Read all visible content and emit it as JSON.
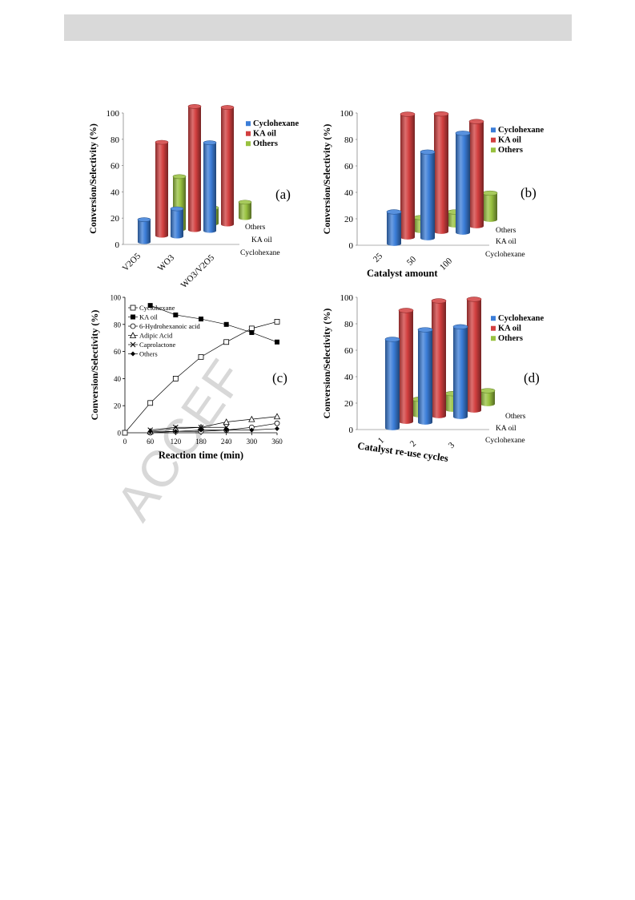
{
  "watermark": "ACCEF",
  "colors": {
    "cyclohexane": "#3b7dd8",
    "ka_oil": "#d23f3f",
    "others": "#98c13f"
  },
  "chart_data": [
    {
      "id": "a",
      "type": "bar",
      "panel_label": "(a)",
      "ylabel": "Conversion/Selectivity (%)",
      "ylim": [
        0,
        100
      ],
      "yticks": [
        "0",
        "20",
        "40",
        "60",
        "80",
        "100"
      ],
      "categories": [
        "V2O5",
        "WO3",
        "WO3/V2O5"
      ],
      "depth_labels": [
        "Others",
        "KA oil",
        "Cyclohexane"
      ],
      "legend": [
        "Cyclohexane",
        "KA oil",
        "Others"
      ],
      "series": [
        {
          "name": "Cyclohexane",
          "values": [
            17,
            21,
            67
          ]
        },
        {
          "name": "KA oil",
          "values": [
            71,
            94,
            89
          ]
        },
        {
          "name": "Others",
          "values": [
            40,
            12,
            12
          ]
        }
      ]
    },
    {
      "id": "b",
      "type": "bar",
      "panel_label": "(b)",
      "ylabel": "Conversion/Selectivity (%)",
      "xlabel": "Catalyst amount",
      "ylim": [
        0,
        100
      ],
      "yticks": [
        "0",
        "20",
        "40",
        "60",
        "80",
        "100"
      ],
      "categories": [
        "25",
        "50",
        "100"
      ],
      "depth_labels": [
        "Others",
        "KA oil",
        "Cyclohexane"
      ],
      "legend": [
        "Cyclohexane",
        "KA oil",
        "Others"
      ],
      "series": [
        {
          "name": "Cyclohexane",
          "values": [
            24,
            65,
            75
          ]
        },
        {
          "name": "KA oil",
          "values": [
            93,
            89,
            79
          ]
        },
        {
          "name": "Others",
          "values": [
            10,
            10,
            20
          ]
        }
      ]
    },
    {
      "id": "c",
      "type": "line",
      "panel_label": "(c)",
      "ylabel": "Conversion/Selectivity (%)",
      "xlabel": "Reaction time (min)",
      "ylim": [
        0,
        100
      ],
      "xlim": [
        0,
        360
      ],
      "yticks": [
        "0",
        "20",
        "40",
        "60",
        "80",
        "100"
      ],
      "xticks": [
        "0",
        "60",
        "120",
        "180",
        "240",
        "300",
        "360"
      ],
      "x": [
        0,
        60,
        120,
        180,
        240,
        300,
        360
      ],
      "series": [
        {
          "name": "Cyclohexane",
          "marker": "open-square",
          "values": [
            0,
            22,
            40,
            56,
            67,
            77,
            82
          ]
        },
        {
          "name": "KA oil",
          "marker": "filled-square",
          "values": [
            null,
            94,
            87,
            84,
            80,
            74,
            67
          ]
        },
        {
          "name": "6-Hydrohexanoic acid",
          "marker": "open-circle",
          "values": [
            null,
            0,
            1,
            1,
            2,
            4,
            7
          ]
        },
        {
          "name": "Adipic Acid",
          "marker": "open-triangle",
          "values": [
            null,
            1,
            3,
            4,
            8,
            10,
            12
          ]
        },
        {
          "name": "Caprolactone",
          "marker": "cross",
          "values": [
            null,
            2,
            4,
            4,
            4,
            null,
            null
          ]
        },
        {
          "name": "Others",
          "marker": "filled-diamond",
          "values": [
            null,
            1,
            1,
            2,
            2,
            2,
            3
          ]
        }
      ]
    },
    {
      "id": "d",
      "type": "bar",
      "panel_label": "(d)",
      "ylabel": "Conversion/Selectivity (%)",
      "xlabel": "Catalyst re-use cycles",
      "ylim": [
        0,
        100
      ],
      "yticks": [
        "0",
        "20",
        "40",
        "60",
        "80",
        "100"
      ],
      "categories": [
        "1",
        "2",
        "3"
      ],
      "depth_labels": [
        "Others",
        "KA oil",
        "Cyclohexane"
      ],
      "legend": [
        "Cyclohexane",
        "KA oil",
        "Others"
      ],
      "series": [
        {
          "name": "Cyclohexane",
          "values": [
            67,
            70,
            68
          ]
        },
        {
          "name": "KA oil",
          "values": [
            84,
            87,
            84
          ]
        },
        {
          "name": "Others",
          "values": [
            12,
            12,
            10
          ]
        }
      ]
    }
  ]
}
